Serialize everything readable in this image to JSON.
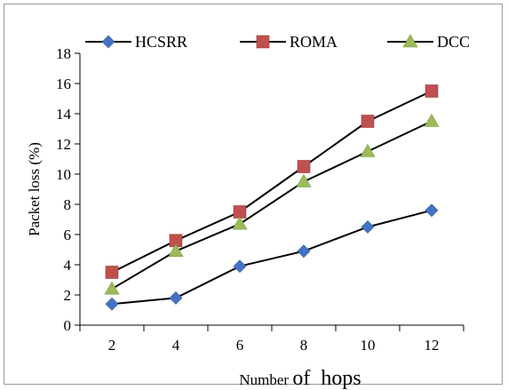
{
  "chart_data": {
    "type": "line",
    "title": "",
    "xlabel_parts": [
      "Number ",
      "of",
      "  hops"
    ],
    "ylabel": "Packet loss (%)",
    "x": [
      2,
      4,
      6,
      8,
      10,
      12
    ],
    "ylim": [
      0,
      18
    ],
    "yticks": [
      0,
      2,
      4,
      6,
      8,
      10,
      12,
      14,
      16,
      18
    ],
    "grid": false,
    "legend_position": "top",
    "series": [
      {
        "name": "HCSRR",
        "marker": "diamond",
        "color": "#4472C4",
        "values": [
          1.4,
          1.8,
          3.9,
          4.9,
          6.5,
          7.6
        ]
      },
      {
        "name": "ROMA",
        "marker": "square",
        "color": "#C0504D",
        "values": [
          3.5,
          5.6,
          7.5,
          10.5,
          13.5,
          15.5
        ]
      },
      {
        "name": "DCC",
        "marker": "triangle",
        "color": "#9BBB59",
        "values": [
          2.4,
          4.9,
          6.7,
          9.5,
          11.5,
          13.5
        ]
      }
    ]
  }
}
